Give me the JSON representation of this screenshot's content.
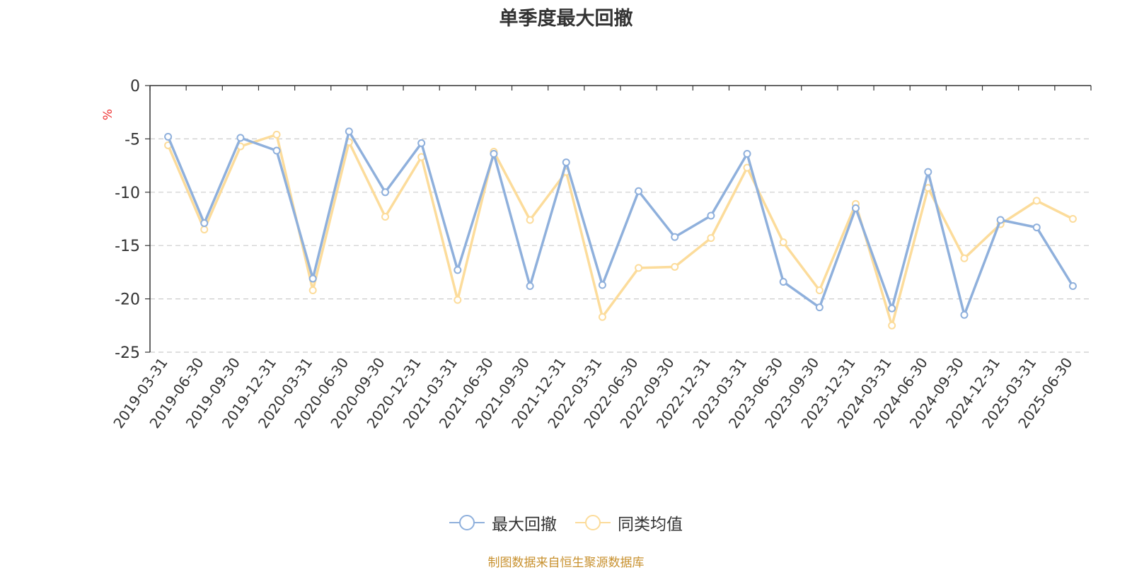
{
  "chart_data": {
    "type": "line",
    "title": "单季度最大回撤",
    "ylabel": "%",
    "ylim": [
      -25,
      0
    ],
    "yticks": [
      0,
      -5,
      -10,
      -15,
      -20,
      -25
    ],
    "grid": true,
    "legend_position": "bottom-center",
    "categories": [
      "2019-03-31",
      "2019-06-30",
      "2019-09-30",
      "2019-12-31",
      "2020-03-31",
      "2020-06-30",
      "2020-09-30",
      "2020-12-31",
      "2021-03-31",
      "2021-06-30",
      "2021-09-30",
      "2021-12-31",
      "2022-03-31",
      "2022-06-30",
      "2022-09-30",
      "2022-12-31",
      "2023-03-31",
      "2023-06-30",
      "2023-09-30",
      "2023-12-31",
      "2024-03-31",
      "2024-06-30",
      "2024-09-30",
      "2024-12-31",
      "2025-03-31",
      "2025-06-30"
    ],
    "series": [
      {
        "name": "最大回撤",
        "color": "#8fb0dc",
        "values": [
          -4.8,
          -12.9,
          -4.9,
          -6.1,
          -18.1,
          -4.3,
          -10.0,
          -5.4,
          -17.3,
          -6.4,
          -18.8,
          -7.2,
          -18.7,
          -9.9,
          -14.2,
          -12.2,
          -6.4,
          -18.4,
          -20.8,
          -11.5,
          -20.9,
          -8.1,
          -21.5,
          -12.6,
          -13.3,
          -18.8
        ]
      },
      {
        "name": "同类均值",
        "color": "#fcdc9b",
        "values": [
          -5.6,
          -13.5,
          -5.7,
          -4.6,
          -19.2,
          -5.3,
          -12.3,
          -6.7,
          -20.1,
          -6.2,
          -12.6,
          -8.1,
          -21.7,
          -17.1,
          -17.0,
          -14.3,
          -7.7,
          -14.7,
          -19.2,
          -11.1,
          -22.5,
          -9.6,
          -16.2,
          -13.0,
          -10.8,
          -12.5
        ]
      }
    ]
  },
  "legend": {
    "items": [
      {
        "label": "最大回撤",
        "color": "#8fb0dc"
      },
      {
        "label": "同类均值",
        "color": "#fcdc9b"
      }
    ]
  },
  "source_note": "制图数据来自恒生聚源数据库",
  "colors": {
    "axis": "#333333",
    "grid": "#cccccc",
    "ylabel": "#ee3333",
    "source": "#c8912f"
  }
}
